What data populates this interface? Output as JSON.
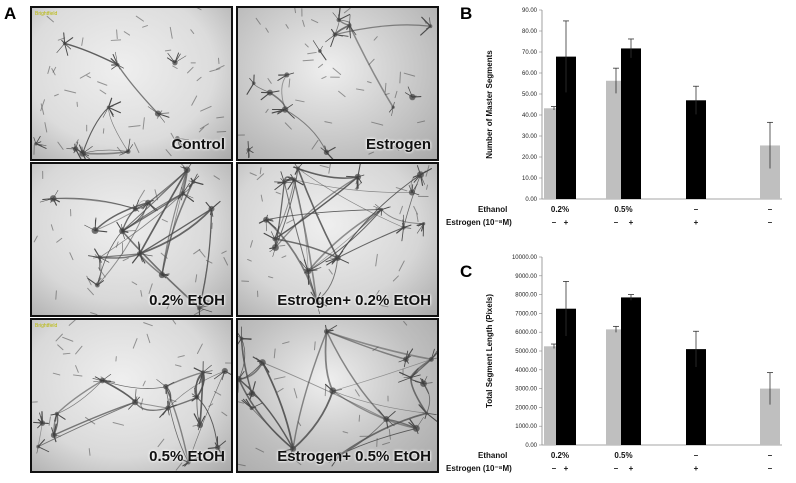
{
  "panel_letters": {
    "a": "A",
    "b": "B",
    "c": "C"
  },
  "micrographs": [
    {
      "caption": "Control",
      "tint": "#c9c9c9",
      "bg": "#dcdcdc",
      "density": 0.35,
      "seed": 3,
      "note": "Brightfield"
    },
    {
      "caption": "Estrogen",
      "tint": "#bdbdbd",
      "bg": "#c6c6c6",
      "density": 0.65,
      "seed": 7,
      "note": ""
    },
    {
      "caption": "0.2% EtOH",
      "tint": "#d2d2d2",
      "bg": "#d8d8d8",
      "density": 0.75,
      "seed": 11,
      "note": ""
    },
    {
      "caption": "Estrogen+ 0.2% EtOH",
      "tint": "#cfcfcf",
      "bg": "#d6d6d6",
      "density": 0.85,
      "seed": 17,
      "note": ""
    },
    {
      "caption": "0.5% EtOH",
      "tint": "#cfcfcf",
      "bg": "#d9d9d9",
      "density": 0.8,
      "seed": 23,
      "note": "Brightfield"
    },
    {
      "caption": "Estrogen+ 0.5% EtOH",
      "tint": "#b4b4b4",
      "bg": "#bfbfbf",
      "density": 1.0,
      "seed": 29,
      "note": ""
    }
  ],
  "conditions": {
    "ethanol_label": "Ethanol",
    "estrogen_label": "Estrogen (10⁻⁸M)",
    "groups": [
      {
        "ethanol": "0.2%",
        "estrogen": [
          "–",
          "+"
        ]
      },
      {
        "ethanol": "0.5%",
        "estrogen": [
          "–",
          "+"
        ]
      },
      {
        "ethanol": "–",
        "estrogen": [
          "+"
        ]
      },
      {
        "ethanol": "–",
        "estrogen": [
          "–"
        ]
      }
    ]
  },
  "colors": {
    "light_bar": "#bfbfbf",
    "dark_bar": "#000000",
    "axis": "#888888"
  },
  "chart_data": [
    {
      "type": "bar",
      "panel": "B",
      "ylabel": "Number of Master Segments",
      "ylim": [
        0,
        90
      ],
      "yticks": [
        "0.00",
        "10.00",
        "20.00",
        "30.00",
        "40.00",
        "50.00",
        "60.00",
        "70.00",
        "80.00",
        "90.00"
      ],
      "bars": [
        {
          "group": 0,
          "slot": 0,
          "color": "light",
          "value": 43.2,
          "error": 0.8
        },
        {
          "group": 0,
          "slot": 1,
          "color": "dark",
          "value": 67.8,
          "error": 17.0
        },
        {
          "group": 1,
          "slot": 0,
          "color": "light",
          "value": 56.3,
          "error": 6.0
        },
        {
          "group": 1,
          "slot": 1,
          "color": "dark",
          "value": 71.7,
          "error": 4.5
        },
        {
          "group": 2,
          "slot": 0,
          "color": "dark",
          "value": 47.0,
          "error": 6.7
        },
        {
          "group": 3,
          "slot": 0,
          "color": "light",
          "value": 25.5,
          "error": 11.0
        }
      ]
    },
    {
      "type": "bar",
      "panel": "C",
      "ylabel": "Total Segment Length (Pixels)",
      "ylim": [
        0,
        10000
      ],
      "yticks": [
        "0.00",
        "1000.00",
        "2000.00",
        "3000.00",
        "4000.00",
        "5000.00",
        "6000.00",
        "7000.00",
        "8000.00",
        "9000.00",
        "10000.00"
      ],
      "bars": [
        {
          "group": 0,
          "slot": 0,
          "color": "light",
          "value": 5250,
          "error": 120
        },
        {
          "group": 0,
          "slot": 1,
          "color": "dark",
          "value": 7250,
          "error": 1450
        },
        {
          "group": 1,
          "slot": 0,
          "color": "light",
          "value": 6150,
          "error": 160
        },
        {
          "group": 1,
          "slot": 1,
          "color": "dark",
          "value": 7850,
          "error": 150
        },
        {
          "group": 2,
          "slot": 0,
          "color": "dark",
          "value": 5100,
          "error": 950
        },
        {
          "group": 3,
          "slot": 0,
          "color": "light",
          "value": 3000,
          "error": 850
        }
      ]
    }
  ]
}
